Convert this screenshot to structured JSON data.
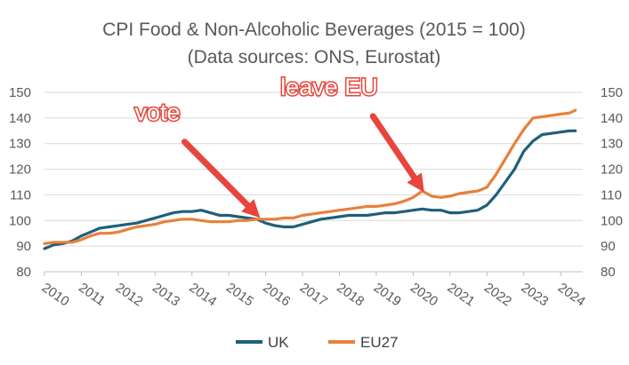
{
  "chart_data": {
    "type": "line",
    "title": "CPI Food & Non-Alcoholic Beverages (2015 = 100)",
    "subtitle": "(Data sources: ONS, Eurostat)",
    "xlabel": "",
    "ylabel": "",
    "ylim": [
      80,
      150
    ],
    "yticks": [
      80,
      90,
      100,
      110,
      120,
      130,
      140,
      150
    ],
    "y2ticks": [
      80,
      90,
      100,
      110,
      120,
      130,
      140,
      150
    ],
    "xlim": [
      2010,
      2024.6
    ],
    "xticks": [
      "2010",
      "2011",
      "2012",
      "2013",
      "2014",
      "2015",
      "2016",
      "2017",
      "2018",
      "2019",
      "2020",
      "2021",
      "2022",
      "2023",
      "2024"
    ],
    "grid": true,
    "legend": "bottom",
    "series": [
      {
        "name": "UK",
        "color": "#1f5f7a",
        "x": [
          2010.0,
          2010.25,
          2010.5,
          2010.75,
          2011.0,
          2011.25,
          2011.5,
          2011.75,
          2012.0,
          2012.25,
          2012.5,
          2012.75,
          2013.0,
          2013.25,
          2013.5,
          2013.75,
          2014.0,
          2014.25,
          2014.5,
          2014.75,
          2015.0,
          2015.25,
          2015.5,
          2015.75,
          2016.0,
          2016.25,
          2016.5,
          2016.75,
          2017.0,
          2017.25,
          2017.5,
          2017.75,
          2018.0,
          2018.25,
          2018.5,
          2018.75,
          2019.0,
          2019.25,
          2019.5,
          2019.75,
          2020.0,
          2020.25,
          2020.5,
          2020.75,
          2021.0,
          2021.25,
          2021.5,
          2021.75,
          2022.0,
          2022.25,
          2022.5,
          2022.75,
          2023.0,
          2023.25,
          2023.5,
          2023.75,
          2024.0,
          2024.25,
          2024.4
        ],
        "values": [
          89,
          90.5,
          91,
          92,
          94,
          95.5,
          97,
          97.5,
          98,
          98.5,
          99,
          100,
          101,
          102,
          103,
          103.5,
          103.5,
          104,
          103,
          102,
          102,
          101.5,
          101,
          100.5,
          99,
          98,
          97.5,
          97.5,
          98.5,
          99.5,
          100.5,
          101,
          101.5,
          102,
          102,
          102,
          102.5,
          103,
          103,
          103.5,
          104,
          104.5,
          104,
          104,
          103,
          103,
          103.5,
          104,
          106,
          110,
          115,
          120,
          127,
          131,
          133.5,
          134,
          134.5,
          135,
          135
        ]
      },
      {
        "name": "EU27",
        "color": "#e8803b",
        "x": [
          2010.0,
          2010.25,
          2010.5,
          2010.75,
          2011.0,
          2011.25,
          2011.5,
          2011.75,
          2012.0,
          2012.25,
          2012.5,
          2012.75,
          2013.0,
          2013.25,
          2013.5,
          2013.75,
          2014.0,
          2014.25,
          2014.5,
          2014.75,
          2015.0,
          2015.25,
          2015.5,
          2015.75,
          2016.0,
          2016.25,
          2016.5,
          2016.75,
          2017.0,
          2017.25,
          2017.5,
          2017.75,
          2018.0,
          2018.25,
          2018.5,
          2018.75,
          2019.0,
          2019.25,
          2019.5,
          2019.75,
          2020.0,
          2020.25,
          2020.5,
          2020.75,
          2021.0,
          2021.25,
          2021.5,
          2021.75,
          2022.0,
          2022.25,
          2022.5,
          2022.75,
          2023.0,
          2023.25,
          2023.5,
          2023.75,
          2024.0,
          2024.25,
          2024.4
        ],
        "values": [
          91,
          91.5,
          91.5,
          91.5,
          92.5,
          94,
          95,
          95,
          95.5,
          96.5,
          97.5,
          98,
          98.5,
          99.5,
          100,
          100.5,
          100.5,
          100,
          99.5,
          99.5,
          99.5,
          100,
          100,
          100.5,
          100.5,
          100.5,
          101,
          101,
          102,
          102.5,
          103,
          103.5,
          104,
          104.5,
          105,
          105.5,
          105.5,
          106,
          106.5,
          107.5,
          109,
          111.5,
          109.5,
          109,
          109.5,
          110.5,
          111,
          111.5,
          113,
          118,
          124,
          130,
          135.5,
          140,
          140.5,
          141,
          141.5,
          142,
          143
        ]
      }
    ],
    "annotations": [
      {
        "text": "vote",
        "x": 2012.45,
        "y": 139,
        "arrow_to": [
          2015.85,
          101
        ]
      },
      {
        "text": "leave EU",
        "x": 2016.4,
        "y": 149,
        "arrow_to": [
          2020.3,
          111
        ]
      }
    ]
  }
}
